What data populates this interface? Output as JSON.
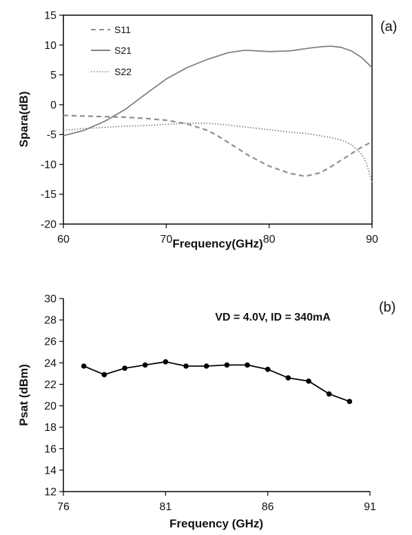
{
  "chart_data": [
    {
      "type": "line",
      "panel_label": "(a)",
      "xlabel": "Frequency(GHz)",
      "ylabel": "Spara(dB)",
      "xlim": [
        60,
        90
      ],
      "ylim": [
        -20,
        15
      ],
      "xticks": [
        "60",
        "70",
        "80",
        "90"
      ],
      "yticks": [
        "15",
        "10",
        "5",
        "0",
        "-5",
        "-10",
        "-15",
        "-20"
      ],
      "grid": false,
      "legend_position": "top-left",
      "series": [
        {
          "name": "S11",
          "style": "dashed",
          "color": "#8c8c8c",
          "x": [
            60,
            62,
            64,
            66,
            68,
            70,
            72,
            74,
            75,
            76,
            78,
            80,
            82,
            83.5,
            85,
            86,
            87,
            88,
            89,
            90
          ],
          "y": [
            -1.8,
            -1.9,
            -2.0,
            -2.1,
            -2.3,
            -2.6,
            -3.2,
            -4.3,
            -5.2,
            -6.3,
            -8.5,
            -10.3,
            -11.5,
            -12.0,
            -11.4,
            -10.4,
            -9.3,
            -8.2,
            -7.1,
            -6.2
          ]
        },
        {
          "name": "S21",
          "style": "solid",
          "color": "#7f7f7f",
          "x": [
            60,
            62,
            64,
            66,
            68,
            70,
            72,
            74,
            76,
            77.5,
            78,
            80,
            82,
            84,
            85,
            86,
            87,
            88,
            89,
            90
          ],
          "y": [
            -5.2,
            -4.3,
            -2.8,
            -0.8,
            1.8,
            4.3,
            6.2,
            7.6,
            8.7,
            9.1,
            9.1,
            8.9,
            9.0,
            9.5,
            9.7,
            9.8,
            9.6,
            9.0,
            7.9,
            6.2
          ]
        },
        {
          "name": "S22",
          "style": "dotted",
          "color": "#7f7f7f",
          "x": [
            60,
            62,
            64,
            66,
            68,
            70,
            72,
            74,
            76,
            78,
            80,
            82,
            84,
            86,
            87,
            88,
            89,
            89.5,
            90
          ],
          "y": [
            -4.3,
            -4.0,
            -3.8,
            -3.6,
            -3.5,
            -3.3,
            -3.1,
            -3.1,
            -3.4,
            -3.8,
            -4.2,
            -4.6,
            -4.9,
            -5.5,
            -5.9,
            -6.7,
            -8.3,
            -10.0,
            -13.0
          ]
        }
      ]
    },
    {
      "type": "line",
      "panel_label": "(b)",
      "xlabel": "Frequency (GHz)",
      "ylabel": "Psat (dBm)",
      "xlim": [
        76,
        91
      ],
      "ylim": [
        12,
        30
      ],
      "xticks": [
        "76",
        "81",
        "86",
        "91"
      ],
      "yticks": [
        "30",
        "28",
        "26",
        "24",
        "22",
        "20",
        "18",
        "16",
        "14",
        "12"
      ],
      "grid": false,
      "annotation": "VD = 4.0V, ID = 340mA",
      "series": [
        {
          "name": "",
          "color": "#000000",
          "markers": true,
          "x": [
            77,
            78,
            79,
            80,
            81,
            82,
            83,
            84,
            85,
            86,
            87,
            88,
            89,
            90
          ],
          "y": [
            23.7,
            22.9,
            23.5,
            23.8,
            24.1,
            23.7,
            23.7,
            23.8,
            23.8,
            23.4,
            22.6,
            22.3,
            21.1,
            20.4
          ]
        }
      ]
    }
  ]
}
